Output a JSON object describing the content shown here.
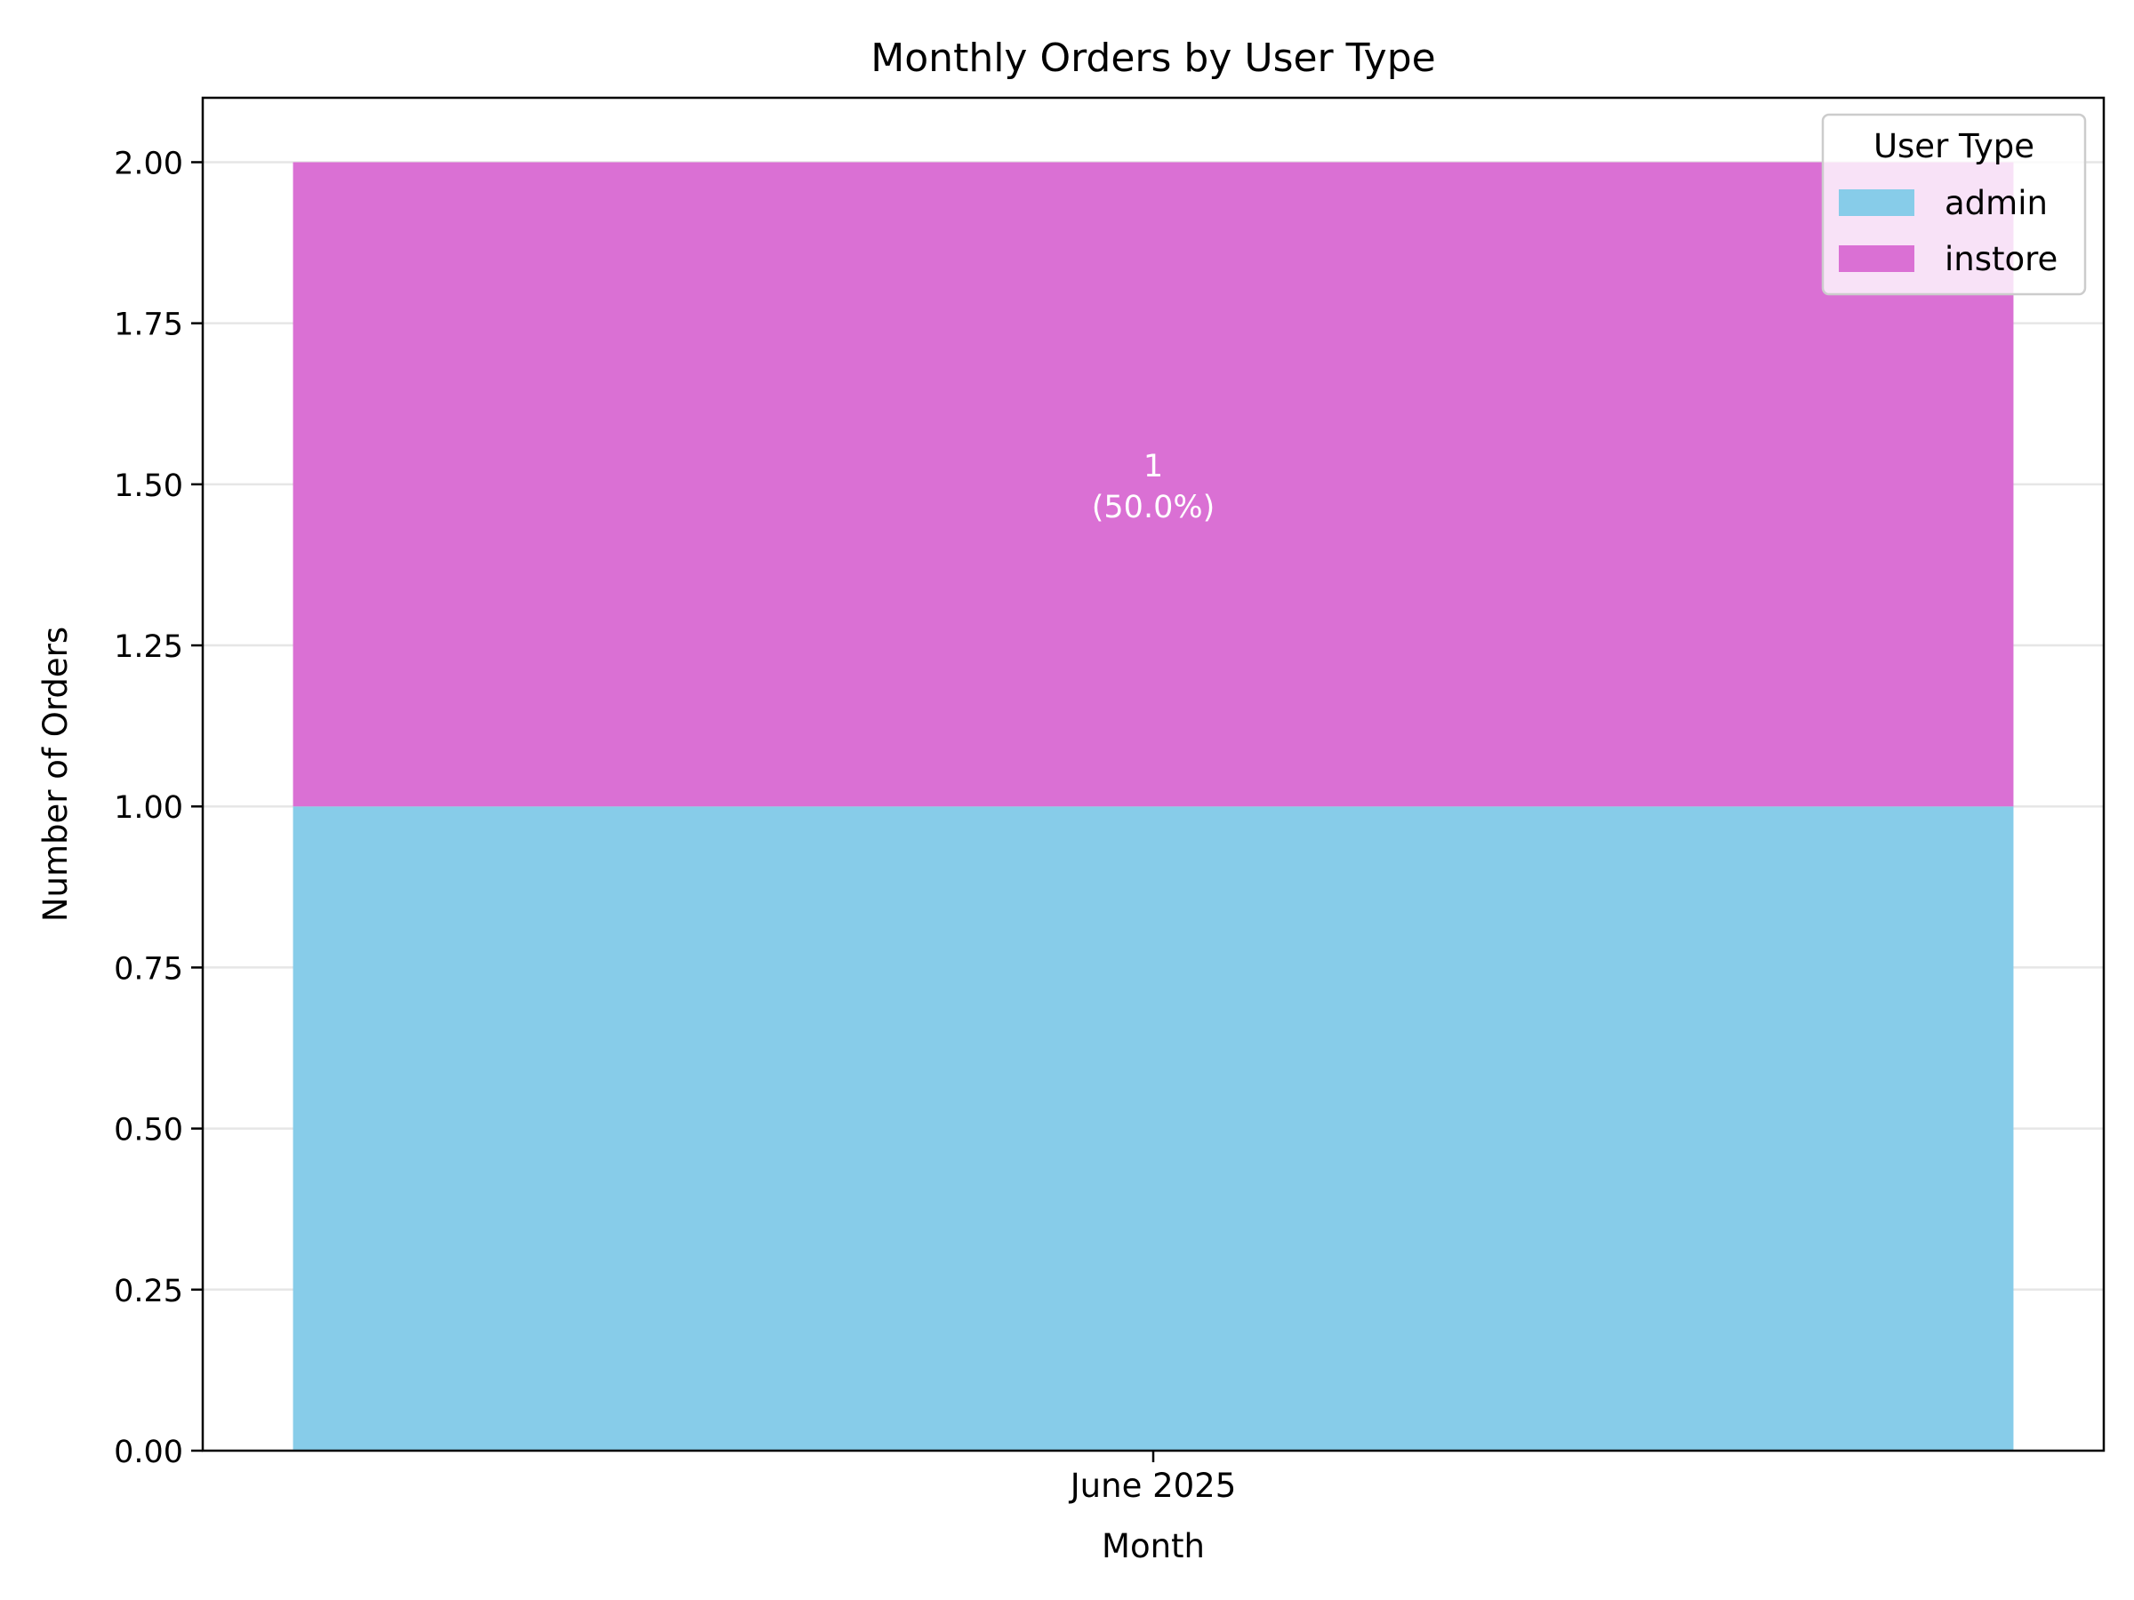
{
  "chart_data": {
    "type": "bar",
    "stacked": true,
    "title": "Monthly Orders by User Type",
    "xlabel": "Month",
    "ylabel": "Number of Orders",
    "categories": [
      "June 2025"
    ],
    "ylim": [
      0,
      2.1
    ],
    "yticks": [
      "0.00",
      "0.25",
      "0.50",
      "0.75",
      "1.00",
      "1.25",
      "1.50",
      "1.75",
      "2.00"
    ],
    "grid": "horizontal",
    "legend": {
      "title": "User Type",
      "position": "top-right"
    },
    "series": [
      {
        "name": "admin",
        "values": [
          1
        ],
        "color": "#87CCE9"
      },
      {
        "name": "instore",
        "values": [
          1
        ],
        "color": "#DA70D4"
      }
    ],
    "annotations": [
      {
        "series": "instore",
        "category": "June 2025",
        "count": "1",
        "percent": "(50.0%)"
      }
    ]
  }
}
